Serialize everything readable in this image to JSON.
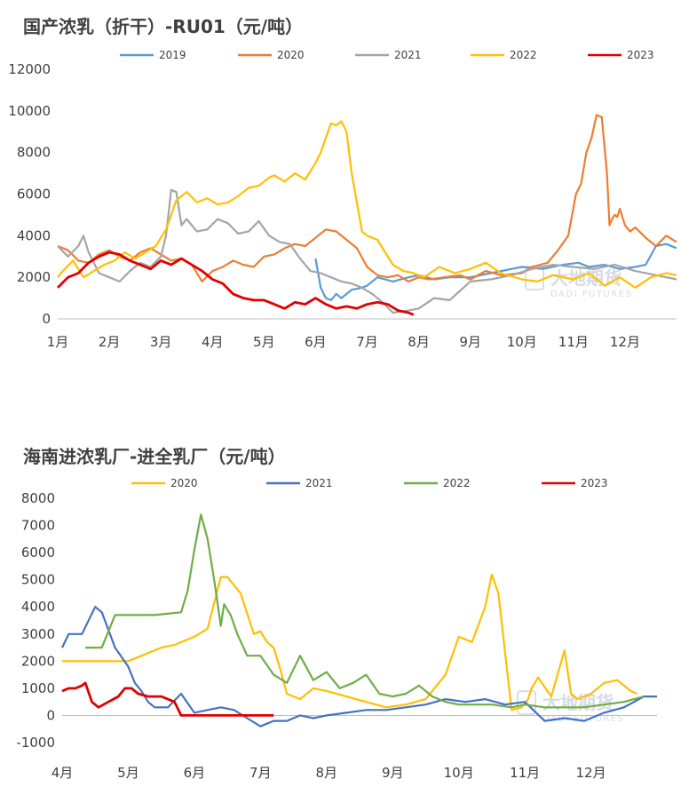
{
  "chart_data": [
    {
      "type": "line",
      "title": "国产浓乳（折干）-RU01（元/吨）",
      "xlabel": "",
      "ylabel": "",
      "ylim": [
        0,
        12000
      ],
      "yticks": [
        0,
        2000,
        4000,
        6000,
        8000,
        10000,
        12000
      ],
      "xlim": [
        0,
        12
      ],
      "xticks": [
        "1月",
        "2月",
        "3月",
        "4月",
        "5月",
        "6月",
        "7月",
        "8月",
        "9月",
        "10月",
        "11月",
        "12月"
      ],
      "grid": false,
      "legend": "top",
      "series": [
        {
          "name": "2019",
          "color": "#5b9bd5",
          "x": [
            5.0,
            5.1,
            5.2,
            5.3,
            5.4,
            5.5,
            5.7,
            5.9,
            6.0,
            6.2,
            6.5,
            6.8,
            7.0,
            7.3,
            7.6,
            8.0,
            8.4,
            8.8,
            9.0,
            9.4,
            9.8,
            10.1,
            10.3,
            10.6,
            10.9,
            11.2,
            11.4,
            11.6,
            11.8,
            12.0
          ],
          "y": [
            2900,
            1500,
            1000,
            900,
            1200,
            1000,
            1400,
            1500,
            1600,
            2000,
            1800,
            2000,
            2100,
            1900,
            2000,
            2000,
            2200,
            2400,
            2500,
            2400,
            2600,
            2700,
            2500,
            2600,
            2400,
            2500,
            2600,
            3500,
            3600,
            3400
          ]
        },
        {
          "name": "2020",
          "color": "#ed7d31",
          "x": [
            0,
            0.2,
            0.4,
            0.6,
            0.8,
            1.0,
            1.2,
            1.4,
            1.6,
            1.8,
            2.0,
            2.2,
            2.4,
            2.6,
            2.8,
            3.0,
            3.2,
            3.4,
            3.6,
            3.8,
            4.0,
            4.2,
            4.4,
            4.6,
            4.8,
            5.0,
            5.2,
            5.4,
            5.6,
            5.8,
            6.0,
            6.2,
            6.4,
            6.6,
            6.8,
            7.0,
            7.2,
            7.5,
            7.8,
            8.0,
            8.3,
            8.6,
            9.0,
            9.2,
            9.5,
            9.7,
            9.9,
            10.05,
            10.15,
            10.25,
            10.35,
            10.45,
            10.55,
            10.65,
            10.7,
            10.75,
            10.8,
            10.85,
            10.9,
            11.0,
            11.1,
            11.2,
            11.4,
            11.6,
            11.8,
            12.0
          ],
          "y": [
            3500,
            3300,
            2800,
            2700,
            3100,
            3300,
            3000,
            2800,
            3200,
            3400,
            3100,
            2800,
            2900,
            2600,
            1800,
            2300,
            2500,
            2800,
            2600,
            2500,
            3000,
            3100,
            3400,
            3600,
            3500,
            3900,
            4300,
            4200,
            3800,
            3400,
            2500,
            2100,
            2000,
            2100,
            1800,
            2000,
            1900,
            2000,
            2100,
            1900,
            2300,
            2100,
            2200,
            2500,
            2700,
            3300,
            4000,
            6000,
            6500,
            8000,
            8700,
            9800,
            9700,
            7000,
            4500,
            4800,
            5000,
            4900,
            5300,
            4500,
            4200,
            4400,
            3900,
            3500,
            4000,
            3700
          ]
        },
        {
          "name": "2021",
          "color": "#a5a5a5",
          "x": [
            0,
            0.2,
            0.4,
            0.5,
            0.6,
            0.8,
            1.0,
            1.2,
            1.4,
            1.6,
            1.8,
            2.0,
            2.1,
            2.2,
            2.3,
            2.4,
            2.5,
            2.7,
            2.9,
            3.1,
            3.3,
            3.5,
            3.7,
            3.9,
            4.1,
            4.3,
            4.5,
            4.7,
            4.9,
            5.1,
            5.3,
            5.5,
            5.7,
            5.9,
            6.1,
            6.3,
            6.5,
            6.8,
            7.0,
            7.3,
            7.6,
            8.0,
            8.4,
            8.8,
            9.2,
            9.6,
            10.0,
            10.4,
            10.8,
            11.2,
            11.6,
            12.0
          ],
          "y": [
            3500,
            3000,
            3500,
            4000,
            3200,
            2200,
            2000,
            1800,
            2300,
            2700,
            2500,
            3000,
            4000,
            6200,
            6100,
            4500,
            4800,
            4200,
            4300,
            4800,
            4600,
            4100,
            4200,
            4700,
            4000,
            3700,
            3600,
            2900,
            2300,
            2200,
            2000,
            1800,
            1700,
            1500,
            1200,
            800,
            300,
            400,
            500,
            1000,
            900,
            1800,
            1900,
            2100,
            2400,
            2600,
            2500,
            2400,
            2600,
            2300,
            2100,
            1900
          ]
        },
        {
          "name": "2022",
          "color": "#ffc000",
          "x": [
            0,
            0.1,
            0.3,
            0.5,
            0.7,
            0.9,
            1.1,
            1.3,
            1.5,
            1.7,
            1.9,
            2.1,
            2.3,
            2.5,
            2.7,
            2.9,
            3.1,
            3.3,
            3.5,
            3.7,
            3.9,
            4.1,
            4.2,
            4.4,
            4.6,
            4.8,
            5.0,
            5.1,
            5.2,
            5.3,
            5.4,
            5.5,
            5.6,
            5.7,
            5.9,
            6.0,
            6.2,
            6.5,
            6.7,
            6.9,
            7.1,
            7.4,
            7.7,
            8.0,
            8.3,
            8.6,
            9.0,
            9.3,
            9.6,
            10.0,
            10.3,
            10.6,
            10.9,
            11.2,
            11.5,
            11.8,
            12.0
          ],
          "y": [
            2000,
            2300,
            2800,
            2000,
            2300,
            2600,
            2800,
            3200,
            2900,
            3200,
            3500,
            4300,
            5700,
            6100,
            5600,
            5800,
            5500,
            5600,
            5900,
            6300,
            6400,
            6800,
            6900,
            6600,
            7000,
            6700,
            7500,
            8000,
            8700,
            9400,
            9300,
            9500,
            9000,
            7000,
            4200,
            4000,
            3800,
            2600,
            2300,
            2200,
            2000,
            2500,
            2200,
            2400,
            2700,
            2200,
            1900,
            1800,
            2100,
            1900,
            2200,
            1600,
            2000,
            1500,
            2000,
            2200,
            2100
          ]
        },
        {
          "name": "2023",
          "color": "#e00000",
          "x": [
            0,
            0.2,
            0.4,
            0.6,
            0.8,
            1.0,
            1.2,
            1.4,
            1.6,
            1.8,
            2.0,
            2.2,
            2.4,
            2.6,
            2.8,
            3.0,
            3.2,
            3.4,
            3.6,
            3.8,
            4.0,
            4.2,
            4.4,
            4.6,
            4.8,
            5.0,
            5.2,
            5.4,
            5.6,
            5.8,
            6.0,
            6.2,
            6.4,
            6.6,
            6.8,
            6.9
          ],
          "y": [
            1500,
            2000,
            2200,
            2700,
            3000,
            3200,
            3100,
            2800,
            2600,
            2400,
            2800,
            2600,
            2900,
            2600,
            2300,
            1900,
            1700,
            1200,
            1000,
            900,
            900,
            700,
            500,
            800,
            700,
            1000,
            700,
            500,
            600,
            500,
            700,
            800,
            700,
            400,
            300,
            200
          ]
        }
      ]
    },
    {
      "type": "line",
      "title": "海南进浓乳厂-进全乳厂（元/吨）",
      "xlabel": "",
      "ylabel": "",
      "ylim": [
        -1000,
        8000
      ],
      "yticks": [
        -1000,
        0,
        1000,
        2000,
        3000,
        4000,
        5000,
        6000,
        7000,
        8000
      ],
      "xlim": [
        0,
        9
      ],
      "xticks": [
        "4月",
        "5月",
        "6月",
        "7月",
        "8月",
        "9月",
        "10月",
        "11月",
        "12月"
      ],
      "grid": false,
      "legend": "top",
      "series": [
        {
          "name": "2020",
          "color": "#ffc000",
          "x": [
            0,
            0.5,
            1.0,
            1.3,
            1.5,
            1.7,
            1.9,
            2.0,
            2.2,
            2.4,
            2.5,
            2.7,
            2.9,
            3.0,
            3.1,
            3.2,
            3.3,
            3.4,
            3.6,
            3.8,
            4.0,
            4.3,
            4.6,
            4.9,
            5.2,
            5.5,
            5.8,
            6.0,
            6.2,
            6.4,
            6.5,
            6.6,
            6.8,
            6.95,
            7.05,
            7.1,
            7.2,
            7.4,
            7.6,
            7.7,
            7.8,
            8.0,
            8.2,
            8.4,
            8.6,
            8.7
          ],
          "y": [
            2000,
            2000,
            2000,
            2300,
            2500,
            2600,
            2800,
            2900,
            3200,
            5100,
            5100,
            4500,
            3000,
            3100,
            2700,
            2500,
            1700,
            800,
            600,
            1000,
            900,
            700,
            500,
            300,
            400,
            600,
            1500,
            2900,
            2700,
            4000,
            5200,
            4500,
            200,
            300,
            600,
            1000,
            1400,
            700,
            2400,
            800,
            600,
            800,
            1200,
            1300,
            900,
            800
          ]
        },
        {
          "name": "2021",
          "color": "#4472c4",
          "x": [
            0,
            0.1,
            0.3,
            0.5,
            0.6,
            0.8,
            1.0,
            1.1,
            1.2,
            1.3,
            1.4,
            1.6,
            1.8,
            2.0,
            2.2,
            2.4,
            2.6,
            2.8,
            3.0,
            3.2,
            3.4,
            3.6,
            3.8,
            4.0,
            4.3,
            4.6,
            4.9,
            5.2,
            5.5,
            5.8,
            6.1,
            6.4,
            6.7,
            7.0,
            7.3,
            7.6,
            7.9,
            8.2,
            8.5,
            8.8,
            9.0
          ],
          "y": [
            2500,
            3000,
            3000,
            4000,
            3800,
            2500,
            1800,
            1200,
            900,
            500,
            300,
            300,
            800,
            100,
            200,
            300,
            200,
            -100,
            -400,
            -200,
            -200,
            0,
            -100,
            0,
            100,
            200,
            200,
            300,
            400,
            600,
            500,
            600,
            400,
            500,
            -200,
            -100,
            -200,
            100,
            300,
            700,
            700
          ]
        },
        {
          "name": "2022",
          "color": "#70ad47",
          "x": [
            0.35,
            0.6,
            0.8,
            1.0,
            1.4,
            1.8,
            1.9,
            2.0,
            2.1,
            2.2,
            2.3,
            2.4,
            2.45,
            2.55,
            2.65,
            2.8,
            3.0,
            3.2,
            3.4,
            3.6,
            3.8,
            4.0,
            4.2,
            4.4,
            4.6,
            4.8,
            5.0,
            5.2,
            5.4,
            5.6,
            5.8,
            6.0,
            6.2,
            6.5,
            6.8,
            7.0,
            7.3,
            7.6,
            7.9,
            8.2,
            8.5,
            8.8
          ],
          "y": [
            2500,
            2500,
            3700,
            3700,
            3700,
            3800,
            4600,
            6100,
            7400,
            6500,
            5000,
            3300,
            4100,
            3700,
            3000,
            2200,
            2200,
            1500,
            1200,
            2200,
            1300,
            1600,
            1000,
            1200,
            1500,
            800,
            700,
            800,
            1100,
            700,
            500,
            400,
            400,
            400,
            300,
            400,
            300,
            300,
            300,
            400,
            500,
            700
          ]
        },
        {
          "name": "2023",
          "color": "#e00000",
          "x": [
            0,
            0.1,
            0.2,
            0.3,
            0.35,
            0.45,
            0.55,
            0.7,
            0.85,
            0.95,
            1.05,
            1.15,
            1.3,
            1.5,
            1.7,
            1.8,
            2.0,
            2.3,
            2.6,
            2.9,
            3.2
          ],
          "y": [
            900,
            1000,
            1000,
            1100,
            1200,
            500,
            300,
            500,
            700,
            1000,
            1000,
            800,
            700,
            700,
            500,
            0,
            0,
            0,
            0,
            0,
            0
          ]
        }
      ]
    }
  ],
  "watermark": {
    "cn": "大地期货",
    "en": "DADI FUTURES"
  }
}
